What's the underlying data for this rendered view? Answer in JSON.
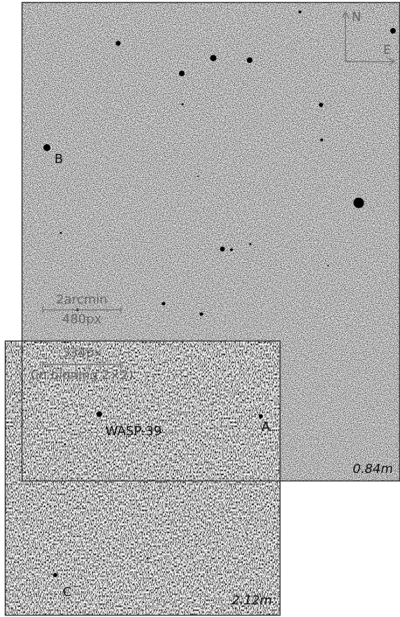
{
  "compass": {
    "north": "N",
    "east": "E"
  },
  "frames": [
    {
      "telescope": "0.84m",
      "scale_bar": {
        "angle": "2arcmin",
        "pixels": "480px"
      },
      "stars": [
        "B"
      ]
    },
    {
      "telescope": "2.12m",
      "scale_bar": {
        "pixels": "334px",
        "note": "(in binning 2×2)"
      },
      "stars": [
        "WASP-39",
        "A",
        "C"
      ]
    }
  ]
}
